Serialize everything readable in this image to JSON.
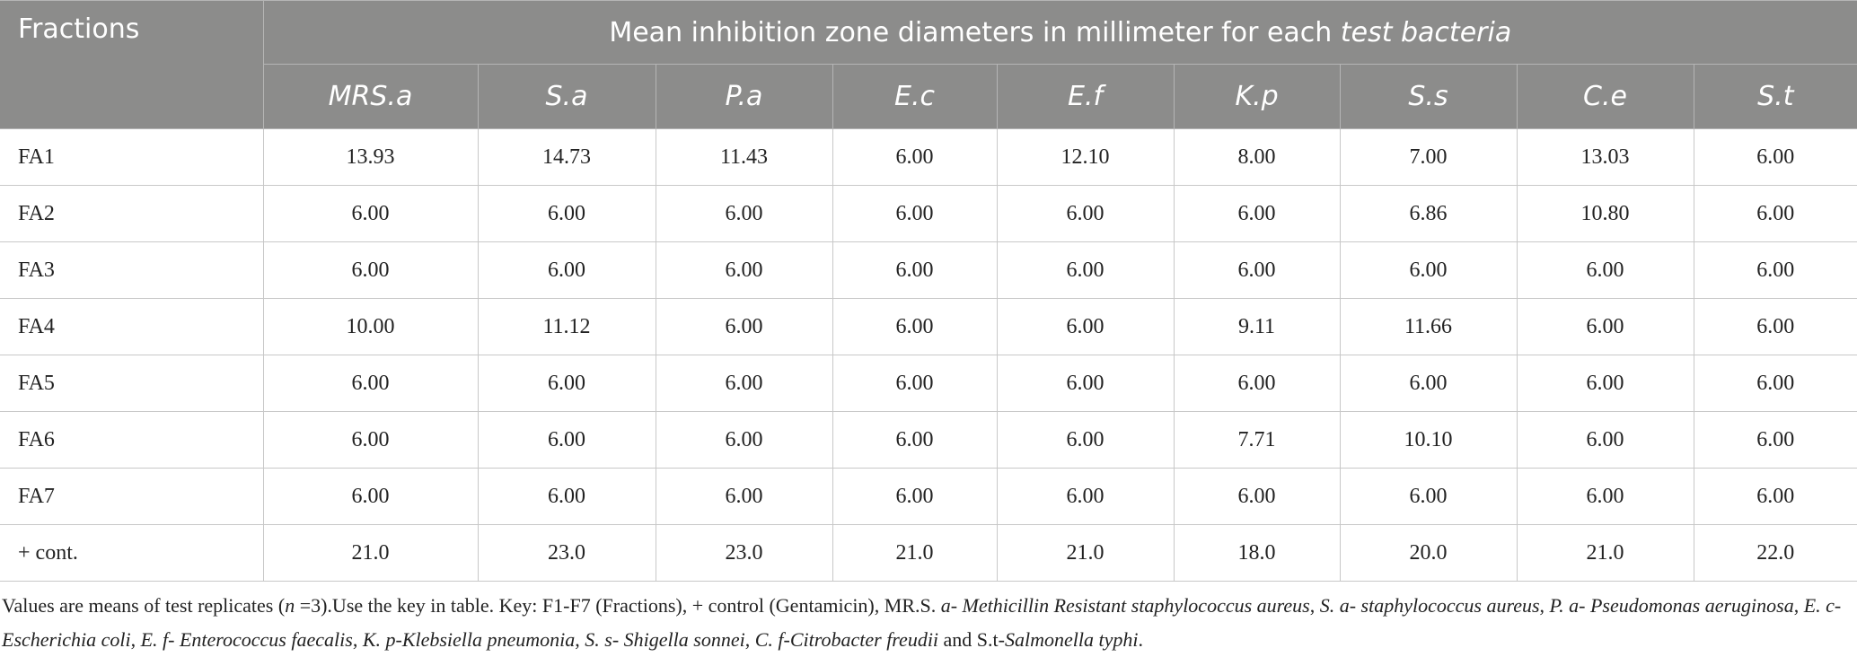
{
  "table": {
    "corner": "Fractions",
    "group_header": [
      "Mean inhibition zone diameters in millimeter for each ",
      "test bacteria"
    ],
    "columns": [
      "MRS.a",
      "S.a",
      "P.a",
      "E.c",
      "E.f",
      "K.p",
      "S.s",
      "C.e",
      "S.t"
    ],
    "rows": [
      [
        "FA1",
        "13.93",
        "14.73",
        "11.43",
        "6.00",
        "12.10",
        "8.00",
        "7.00",
        "13.03",
        "6.00"
      ],
      [
        "FA2",
        "6.00",
        "6.00",
        "6.00",
        "6.00",
        "6.00",
        "6.00",
        "6.86",
        "10.80",
        "6.00"
      ],
      [
        "FA3",
        "6.00",
        "6.00",
        "6.00",
        "6.00",
        "6.00",
        "6.00",
        "6.00",
        "6.00",
        "6.00"
      ],
      [
        "FA4",
        "10.00",
        "11.12",
        "6.00",
        "6.00",
        "6.00",
        "9.11",
        "11.66",
        "6.00",
        "6.00"
      ],
      [
        "FA5",
        "6.00",
        "6.00",
        "6.00",
        "6.00",
        "6.00",
        "6.00",
        "6.00",
        "6.00",
        "6.00"
      ],
      [
        "FA6",
        "6.00",
        "6.00",
        "6.00",
        "6.00",
        "6.00",
        "7.71",
        "10.10",
        "6.00",
        "6.00"
      ],
      [
        "FA7",
        "6.00",
        "6.00",
        "6.00",
        "6.00",
        "6.00",
        "6.00",
        "6.00",
        "6.00",
        "6.00"
      ],
      [
        "+ cont.",
        "21.0",
        "23.0",
        "23.0",
        "21.0",
        "21.0",
        "18.0",
        "20.0",
        "21.0",
        "22.0"
      ]
    ]
  },
  "footnote": [
    "Values are means of test replicates (",
    "n",
    " =3).Use the key in table. Key: F1-F7 (Fractions), + control (Gentamicin), MR.S. ",
    "a- Methicillin Resistant staphylococcus aureus",
    ", ",
    "S. a- staphylococcus aureus",
    ", ",
    "P. a- Pseudomonas aeruginosa",
    ", ",
    "E. c-Escherichia coli",
    ", ",
    "E. f- Enterococcus faecalis",
    ", ",
    "K. p-Klebsiella pneumonia",
    ", ",
    "S. s- Shigella sonnei",
    ", ",
    "C. f-Citrobacter freudii",
    " and S.t-",
    "Salmonella typhi",
    "."
  ]
}
